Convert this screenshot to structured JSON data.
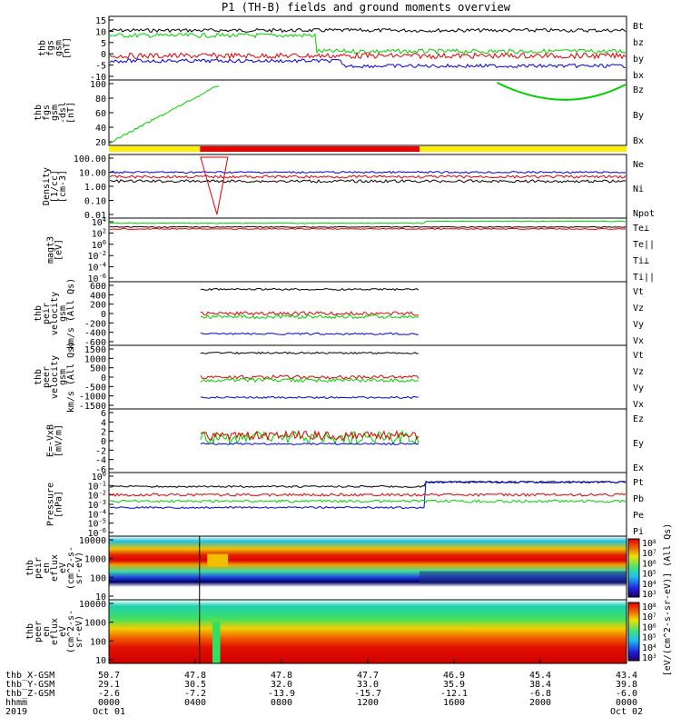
{
  "title": "P1 (TH-B) fields and ground moments overview",
  "colors": {
    "black": "#000000",
    "red": "#e00000",
    "green": "#00d000",
    "blue": "#0000e0",
    "yellow": "#ffee00",
    "bar_red": "#ee0000"
  },
  "chart_data": {
    "type": "line",
    "panels": [
      {
        "id": "fgs",
        "ylabel": [
          "thb",
          "fgs",
          "gsm",
          "[nT]"
        ],
        "yticks": [
          "15",
          "10",
          "5",
          "0",
          "-5",
          "-10"
        ],
        "ylim": [
          -10,
          15
        ],
        "legend": [
          {
            "text": "Bt",
            "color": "black"
          },
          {
            "text": "bz",
            "color": "red"
          },
          {
            "text": "by",
            "color": "green"
          },
          {
            "text": "bx",
            "color": "blue"
          }
        ]
      },
      {
        "id": "fgs_dsl",
        "ylabel": [
          "thb",
          "fgs",
          "gsm",
          "-dsl",
          "[nT]"
        ],
        "yticks": [
          "100",
          "80",
          "60",
          "40",
          "20"
        ],
        "ylim": [
          10,
          105
        ],
        "legend": [
          {
            "text": "Bz",
            "color": "red"
          },
          {
            "text": "By",
            "color": "green"
          },
          {
            "text": "Bx",
            "color": "blue"
          }
        ]
      },
      {
        "id": "density",
        "ylabel": [
          "Density",
          "[1/cc]",
          "[cm-3]"
        ],
        "yticks": [
          "100.00",
          "10.00",
          "1.00",
          "0.10",
          "0.01"
        ],
        "log": true,
        "legend": [
          {
            "text": "Ne",
            "color": "red"
          },
          {
            "text": "Ni",
            "color": "black"
          },
          {
            "text": "Npot",
            "color": "blue"
          }
        ]
      },
      {
        "id": "temp",
        "ylabel": [
          "magt3",
          "[eV]"
        ],
        "yticks": [
          "10^4",
          "10^2",
          "10^0",
          "10^-2",
          "10^-4",
          "10^-6"
        ],
        "log": true,
        "legend": [
          {
            "text": "Te⊥",
            "color": "red"
          },
          {
            "text": "Te||",
            "color": "black"
          },
          {
            "text": "Ti⊥",
            "color": "green"
          },
          {
            "text": "Ti||",
            "color": "green"
          }
        ]
      },
      {
        "id": "peir_vel",
        "ylabel": [
          "thb",
          "peir",
          "velocity",
          "gsm",
          "km/s (All Qs)"
        ],
        "yticks": [
          "600",
          "400",
          "200",
          "0",
          "-200",
          "-400",
          "-600"
        ],
        "ylim": [
          -600,
          600
        ],
        "legend": [
          {
            "text": "Vt",
            "color": "black"
          },
          {
            "text": "Vz",
            "color": "red"
          },
          {
            "text": "Vy",
            "color": "green"
          },
          {
            "text": "Vx",
            "color": "blue"
          }
        ]
      },
      {
        "id": "peer_vel",
        "ylabel": [
          "thb",
          "peer",
          "velocity",
          "gsm",
          "km/s (All Qs)"
        ],
        "yticks": [
          "1500",
          "1000",
          "500",
          "0",
          "-500",
          "-1000",
          "-1500"
        ],
        "ylim": [
          -1500,
          1500
        ],
        "legend": [
          {
            "text": "Vt",
            "color": "black"
          },
          {
            "text": "Vz",
            "color": "red"
          },
          {
            "text": "Vy",
            "color": "green"
          },
          {
            "text": "Vx",
            "color": "blue"
          }
        ]
      },
      {
        "id": "efield",
        "ylabel": [
          "E=-VxB",
          "[mV/m]"
        ],
        "yticks": [
          "6",
          "4",
          "2",
          "0",
          "-2",
          "-4",
          "-6"
        ],
        "ylim": [
          -6,
          6
        ],
        "legend": [
          {
            "text": "Ez",
            "color": "red"
          },
          {
            "text": "Ey",
            "color": "green"
          },
          {
            "text": "Ex",
            "color": "blue"
          }
        ]
      },
      {
        "id": "pressure",
        "ylabel": [
          "Pressure",
          "[nPa]"
        ],
        "yticks": [
          "10^0",
          "10^-1",
          "10^-2",
          "10^-3",
          "10^-4",
          "10^-5",
          "10^-6"
        ],
        "log": true,
        "legend": [
          {
            "text": "Pt",
            "color": "black"
          },
          {
            "text": "Pb",
            "color": "red"
          },
          {
            "text": "Pe",
            "color": "green"
          },
          {
            "text": "Pi",
            "color": "blue"
          }
        ]
      },
      {
        "id": "peir_flux",
        "ylabel": [
          "thb",
          "peir",
          "en",
          "eflux",
          "eV",
          "(cm^2-s-",
          "sr-eV)"
        ],
        "yticks": [
          "10000",
          "1000",
          "100",
          "10"
        ],
        "log": true
      },
      {
        "id": "peer_flux",
        "ylabel": [
          "thb",
          "peer",
          "en",
          "eflux",
          "eV",
          "(cm^2-s-",
          "sr-eV)"
        ],
        "yticks": [
          "10000",
          "1000",
          "100",
          "10"
        ],
        "log": true
      }
    ],
    "colorbar": {
      "label": "[eV/(cm^2-s-sr-eV)] (All Qs)",
      "ticks": [
        "10^8",
        "10^7",
        "10^6",
        "10^5",
        "10^4",
        "10^3"
      ]
    },
    "x_axis": {
      "rows": [
        {
          "label": "thb_X-GSM",
          "values": [
            "50.7",
            "47.8",
            "47.8",
            "47.7",
            "46.9",
            "45.4",
            "43.4"
          ]
        },
        {
          "label": "thb_Y-GSM",
          "values": [
            "29.1",
            "30.5",
            "32.0",
            "33.0",
            "35.9",
            "38.4",
            "39.8"
          ]
        },
        {
          "label": "thb_Z-GSM",
          "values": [
            "-2.6",
            "-7.2",
            "-13.9",
            "-15.7",
            "-12.1",
            "-6.8",
            "-6.0"
          ]
        },
        {
          "label": "hhmm",
          "values": [
            "0000",
            "0400",
            "0800",
            "1200",
            "1600",
            "2000",
            "0000"
          ]
        }
      ],
      "bottom_left": "2019",
      "dates": [
        "Oct 01",
        "Oct 02"
      ]
    }
  }
}
